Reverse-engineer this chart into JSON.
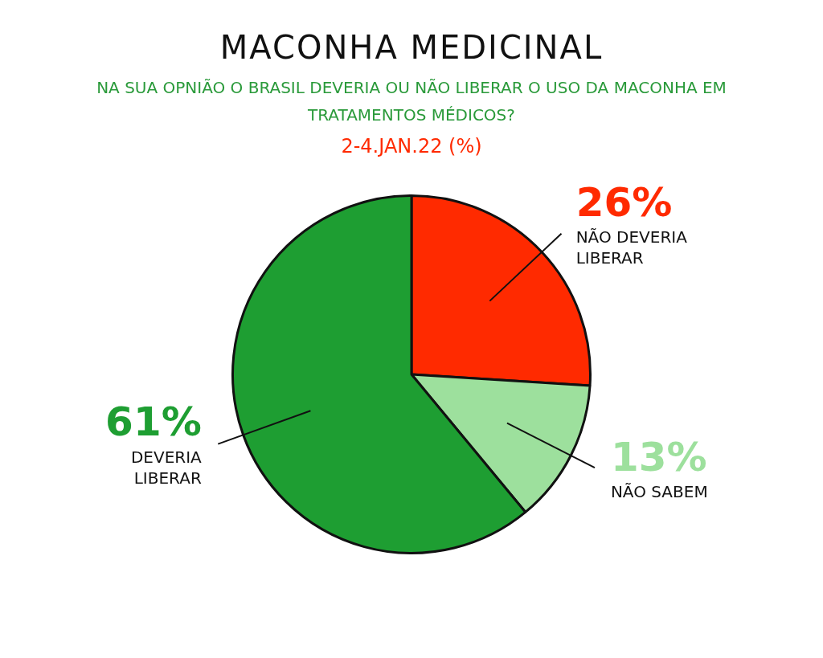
{
  "chart_data": {
    "type": "pie",
    "title": "MACONHA MEDICINAL",
    "subtitle": "NA SUA OPNIÃO  O BRASIL DEVERIA OU NÃO LIBERAR O USO DA MACONHA EM TRATAMENTOS MÉDICOS?",
    "annotations": [
      "2-4.JAN.22 (%)"
    ],
    "categories": [
      "NÃO DEVERIA LIBERAR",
      "NÃO SABEM",
      "DEVERIA LIBERAR"
    ],
    "values": [
      26,
      13,
      61
    ],
    "colors": [
      "#ff2a00",
      "#9de09d",
      "#1e9e32"
    ],
    "value_labels": [
      "26%",
      "13%",
      "61%"
    ],
    "legend": false
  }
}
